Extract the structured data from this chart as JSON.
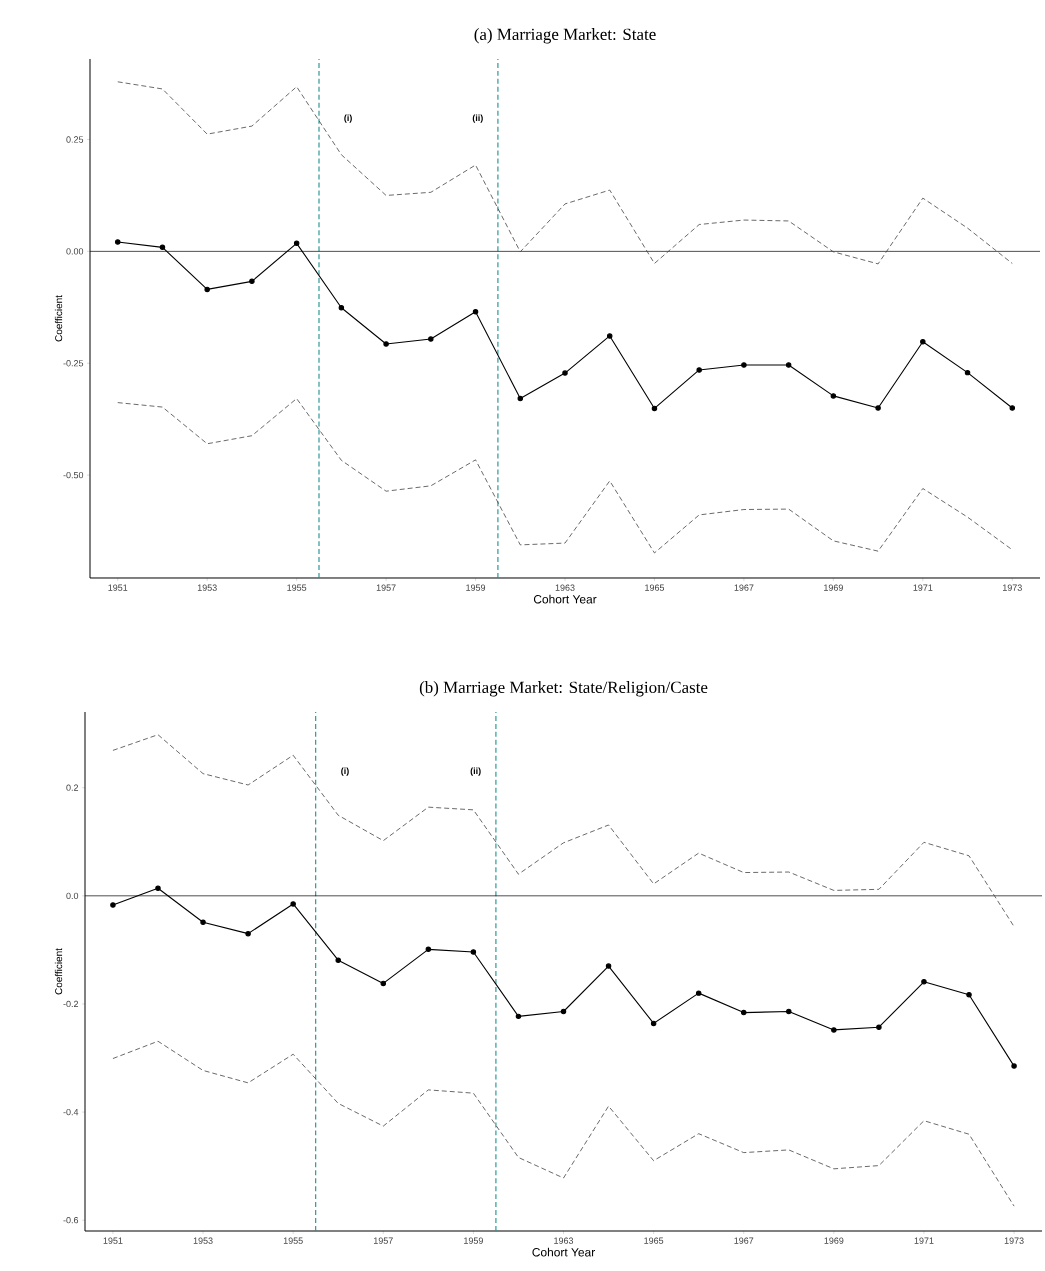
{
  "chart_data": [
    {
      "type": "line",
      "title": "(a) Marriage Market: State",
      "xlabel": "Cohort Year",
      "ylabel": "Coefficient",
      "categories": [
        "1951",
        null,
        "1953",
        null,
        "1955",
        null,
        "1957",
        null,
        "1959",
        null,
        "1963",
        null,
        "1965",
        null,
        "1967",
        null,
        "1969",
        null,
        "1971",
        null,
        "1973"
      ],
      "ylim": [
        -0.73,
        0.43
      ],
      "yticks": [
        {
          "value": -0.5,
          "label": "-0.50"
        },
        {
          "value": -0.25,
          "label": "-0.25"
        },
        {
          "value": 0,
          "label": "0.00"
        },
        {
          "value": 0.25,
          "label": "0.25"
        }
      ],
      "ref_lines": [
        {
          "axis": "y",
          "value": 0,
          "color": "#000000",
          "line_style": "solid"
        }
      ],
      "annotations": [
        "(i)",
        "(ii)"
      ],
      "series": [
        {
          "color": "#000000",
          "marker": "circle",
          "line_style": "solid",
          "values": [
            0.021,
            0.009,
            -0.085,
            -0.067,
            0.018,
            -0.126,
            -0.207,
            -0.196,
            -0.135,
            -0.329,
            -0.272,
            -0.189,
            -0.351,
            -0.265,
            -0.254,
            -0.254,
            -0.323,
            -0.35,
            -0.202,
            -0.271,
            -0.35
          ]
        },
        {
          "color": "#444444",
          "marker": "none",
          "line_style": "dashed",
          "values": [
            0.379,
            0.363,
            0.262,
            0.28,
            0.368,
            0.216,
            0.125,
            0.132,
            0.193,
            -0.001,
            0.106,
            0.137,
            -0.027,
            0.06,
            0.07,
            0.068,
            -0.001,
            -0.028,
            0.119,
            0.052,
            -0.027
          ]
        },
        {
          "color": "#444444",
          "marker": "none",
          "line_style": "dashed",
          "values": [
            -0.338,
            -0.348,
            -0.43,
            -0.412,
            -0.329,
            -0.467,
            -0.536,
            -0.524,
            -0.466,
            -0.656,
            -0.652,
            -0.513,
            -0.674,
            -0.589,
            -0.577,
            -0.576,
            -0.647,
            -0.67,
            -0.53,
            -0.594,
            -0.667
          ]
        }
      ]
    },
    {
      "type": "line",
      "title": "(b) Marriage Market: State/Religion/Caste",
      "xlabel": "Cohort Year",
      "ylabel": "Coefficient",
      "categories": [
        "1951",
        null,
        "1953",
        null,
        "1955",
        null,
        "1957",
        null,
        "1959",
        null,
        "1963",
        null,
        "1965",
        null,
        "1967",
        null,
        "1969",
        null,
        "1971",
        null,
        "1973"
      ],
      "ylim": [
        -0.62,
        0.34
      ],
      "yticks": [
        -0.6,
        -0.4,
        -0.2,
        {
          "value": 0,
          "label": "0.0"
        },
        0.2
      ],
      "ref_lines": [
        {
          "axis": "y",
          "value": 0,
          "color": "#000000",
          "line_style": "solid"
        }
      ],
      "annotations": [
        "(i)",
        "(ii)"
      ],
      "series": [
        {
          "color": "#000000",
          "marker": "circle",
          "line_style": "solid",
          "values": [
            -0.017,
            0.014,
            -0.049,
            -0.07,
            -0.015,
            -0.119,
            -0.162,
            -0.099,
            -0.104,
            -0.223,
            -0.214,
            -0.13,
            -0.236,
            -0.18,
            -0.216,
            -0.214,
            -0.248,
            -0.243,
            -0.159,
            -0.183,
            -0.315
          ]
        },
        {
          "color": "#444444",
          "marker": "none",
          "line_style": "dashed",
          "values": [
            0.269,
            0.298,
            0.226,
            0.205,
            0.26,
            0.149,
            0.102,
            0.164,
            0.159,
            0.04,
            0.098,
            0.131,
            0.022,
            0.079,
            0.043,
            0.044,
            0.01,
            0.012,
            0.099,
            0.074,
            -0.057
          ]
        },
        {
          "color": "#444444",
          "marker": "none",
          "line_style": "dashed",
          "values": [
            -0.301,
            -0.269,
            -0.323,
            -0.346,
            -0.293,
            -0.384,
            -0.426,
            -0.359,
            -0.365,
            -0.484,
            -0.522,
            -0.389,
            -0.49,
            -0.44,
            -0.475,
            -0.47,
            -0.505,
            -0.499,
            -0.416,
            -0.441,
            -0.574
          ]
        }
      ]
    }
  ]
}
